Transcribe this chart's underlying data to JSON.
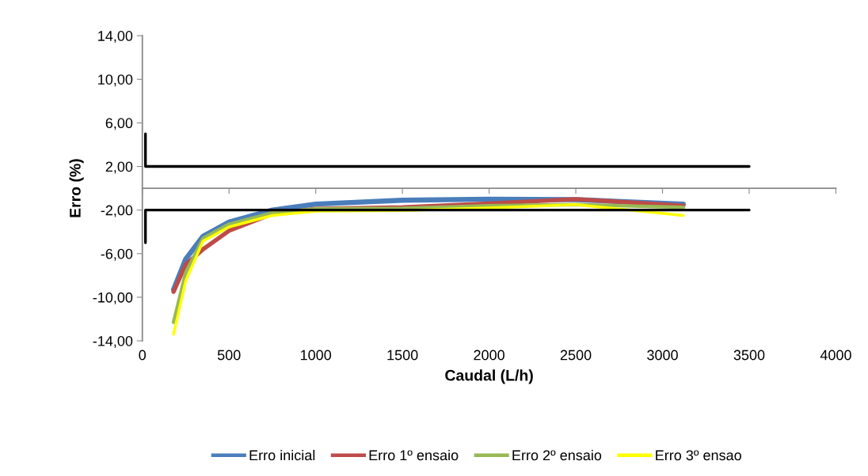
{
  "chart_data": {
    "type": "line",
    "xlabel": "Caudal (L/h)",
    "ylabel": "Erro (%)",
    "xlim": [
      0,
      4000
    ],
    "xticks": [
      0,
      500,
      1000,
      1500,
      2000,
      2500,
      3000,
      3500,
      4000
    ],
    "ylim": [
      -14,
      14
    ],
    "yticks": [
      {
        "value": -14,
        "label": "-14,00"
      },
      {
        "value": -10,
        "label": "-10,00"
      },
      {
        "value": -6,
        "label": "-6,00"
      },
      {
        "value": -2,
        "label": "-2,00"
      },
      {
        "value": 2,
        "label": "2,00"
      },
      {
        "value": 6,
        "label": "6,00"
      },
      {
        "value": 10,
        "label": "10,00"
      },
      {
        "value": 14,
        "label": "14,00"
      }
    ],
    "grid": false,
    "legend": "bottom",
    "marker": "none",
    "line_style": "solid",
    "series": [
      {
        "name": "Erro inicial",
        "color": "#4a7ebb",
        "x": [
          180,
          250,
          350,
          500,
          750,
          1000,
          1500,
          2000,
          2500,
          3120
        ],
        "values": [
          -9.3,
          -6.5,
          -4.4,
          -3.1,
          -2.0,
          -1.45,
          -1.1,
          -1.0,
          -1.05,
          -1.45
        ]
      },
      {
        "name": "Erro 1º ensaio",
        "color": "#be4b48",
        "x": [
          180,
          250,
          350,
          500,
          750,
          1000,
          1500,
          2000,
          2500,
          3120
        ],
        "values": [
          -9.5,
          -7.0,
          -5.6,
          -3.9,
          -2.35,
          -1.9,
          -1.75,
          -1.4,
          -1.0,
          -1.6
        ]
      },
      {
        "name": "Erro 2º ensaio",
        "color": "#98b954",
        "x": [
          180,
          250,
          350,
          500,
          750,
          1000,
          1500,
          2000,
          2500,
          3120
        ],
        "values": [
          -12.3,
          -7.75,
          -4.6,
          -3.3,
          -2.25,
          -1.9,
          -1.85,
          -1.6,
          -1.5,
          -1.75
        ]
      },
      {
        "name": "Erro 3º ensao",
        "color": "#ffff00",
        "x": [
          180,
          250,
          350,
          500,
          750,
          1000,
          1500,
          2000,
          2500,
          3120
        ],
        "values": [
          -13.4,
          -8.5,
          -4.85,
          -3.55,
          -2.5,
          -2.1,
          -2.05,
          -1.8,
          -1.5,
          -2.5
        ]
      },
      {
        "color": "#000000",
        "x": [
          18,
          18,
          3500
        ],
        "values": [
          5,
          2,
          2
        ]
      },
      {
        "color": "#000000",
        "x": [
          18,
          18,
          3500
        ],
        "values": [
          -5,
          -2,
          -2
        ]
      }
    ]
  }
}
